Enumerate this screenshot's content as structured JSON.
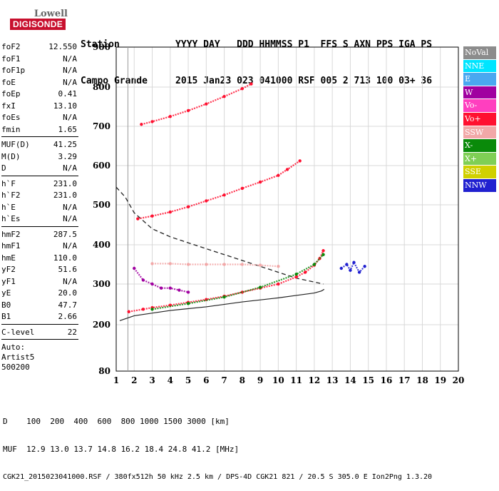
{
  "brand": {
    "line1": "Lowell",
    "line2": "DIGISONDE"
  },
  "header": {
    "row1": "Station          YYYY DAY   DDD HHMMSS P1  FFS S AXN PPS IGA PS",
    "row2": "Campo Grande     2015 Jan23 023 041000 RSF 005 2 713 100 03+ 36"
  },
  "params": {
    "g1": [
      [
        "foF2",
        "12.550"
      ],
      [
        "foF1",
        "N/A"
      ],
      [
        "foF1p",
        "N/A"
      ],
      [
        "foE",
        "N/A"
      ],
      [
        "foEp",
        "0.41"
      ],
      [
        "fxI",
        "13.10"
      ],
      [
        "foEs",
        "N/A"
      ],
      [
        "fmin",
        "1.65"
      ]
    ],
    "g2": [
      [
        "MUF(D)",
        "41.25"
      ],
      [
        "M(D)",
        "3.29"
      ],
      [
        "D",
        "N/A"
      ]
    ],
    "g3": [
      [
        "h`F",
        "231.0"
      ],
      [
        "h`F2",
        "231.0"
      ],
      [
        "h`E",
        "N/A"
      ],
      [
        "h`Es",
        "N/A"
      ]
    ],
    "g4": [
      [
        "hmF2",
        "287.5"
      ],
      [
        "hmF1",
        "N/A"
      ],
      [
        "hmE",
        "110.0"
      ],
      [
        "yF2",
        "51.6"
      ],
      [
        "yF1",
        "N/A"
      ],
      [
        "yE",
        "20.0"
      ],
      [
        "B0",
        "47.7"
      ],
      [
        "B1",
        "2.66"
      ]
    ],
    "g5": [
      [
        "C-level",
        "22"
      ]
    ]
  },
  "auto": {
    "l1": "Auto:",
    "l2": "Artist5",
    "l3": "500200"
  },
  "legend": [
    {
      "label": "NoVal",
      "color": "#8c8c8c"
    },
    {
      "label": "NNE",
      "color": "#00e5ff"
    },
    {
      "label": "E",
      "color": "#4aa8f0"
    },
    {
      "label": "W",
      "color": "#a000a0"
    },
    {
      "label": "Vo-",
      "color": "#ff3fbf"
    },
    {
      "label": "Vo+",
      "color": "#ff1030"
    },
    {
      "label": "SSW",
      "color": "#f2a8a8"
    },
    {
      "label": "X-",
      "color": "#0a8a0a"
    },
    {
      "label": "X+",
      "color": "#7fcf55"
    },
    {
      "label": "SSE",
      "color": "#d0d000"
    },
    {
      "label": "NNW",
      "color": "#2020d0"
    }
  ],
  "footer": {
    "l1": "D    100  200  400  600  800 1000 1500 3000 [km]",
    "l2": "MUF  12.9 13.0 13.7 14.8 16.2 18.4 24.8 41.2 [MHz]",
    "l3": "CGK21_2015023041000.RSF / 380fx512h 50 kHz 2.5 km / DPS-4D CGK21 821 / 20.5 S 305.0 E Ion2Png 1.3.20"
  },
  "chart_data": {
    "type": "scatter",
    "xlim": [
      1,
      20
    ],
    "ylim": [
      80,
      900
    ],
    "xticks": [
      1,
      2,
      3,
      4,
      5,
      6,
      7,
      8,
      9,
      10,
      11,
      12,
      13,
      14,
      15,
      16,
      17,
      18,
      19,
      20
    ],
    "yticks": [
      80,
      200,
      300,
      400,
      500,
      600,
      700,
      800,
      900
    ],
    "grid": true,
    "fmin_line": 1.65,
    "foF2_line": 12.55,
    "series": [
      {
        "color": "#ff1030",
        "x": [
          1.7,
          2.5,
          3,
          4,
          5,
          6,
          7,
          8,
          9,
          10,
          11,
          11.5,
          12,
          12.3,
          12.5
        ],
        "y": [
          232,
          238,
          242,
          248,
          255,
          262,
          270,
          280,
          290,
          300,
          318,
          330,
          348,
          365,
          385
        ]
      },
      {
        "color": "#ff1030",
        "x": [
          2.2,
          3,
          4,
          5,
          6,
          7,
          8,
          9,
          10,
          10.5,
          11.2
        ],
        "y": [
          465,
          472,
          482,
          495,
          510,
          525,
          542,
          558,
          575,
          590,
          612
        ]
      },
      {
        "color": "#ff1030",
        "x": [
          2.4,
          3,
          4,
          5,
          6,
          7,
          8,
          8.5
        ],
        "y": [
          705,
          712,
          725,
          740,
          757,
          776,
          796,
          808
        ]
      },
      {
        "color": "#f2a8a8",
        "x": [
          3,
          4,
          5,
          6,
          7,
          8,
          9,
          10
        ],
        "y": [
          352,
          352,
          350,
          350,
          350,
          350,
          348,
          345
        ]
      },
      {
        "color": "#a000a0",
        "x": [
          2,
          2.5,
          3,
          3.5,
          4,
          4.5,
          5
        ],
        "y": [
          340,
          310,
          300,
          290,
          290,
          285,
          280
        ]
      },
      {
        "color": "#0a8a0a",
        "x": [
          3,
          5,
          7,
          9,
          11,
          12,
          12.5
        ],
        "y": [
          238,
          252,
          268,
          292,
          325,
          350,
          375
        ]
      },
      {
        "color": "#2020d0",
        "x": [
          13.5,
          13.8,
          14,
          14.2,
          14.5,
          14.8
        ],
        "y": [
          340,
          350,
          335,
          355,
          330,
          345
        ]
      }
    ],
    "profile": {
      "x": [
        1.2,
        2,
        4,
        6,
        8,
        10,
        11,
        12,
        12.4,
        12.55
      ],
      "y": [
        210,
        222,
        235,
        244,
        256,
        266,
        272,
        278,
        283,
        287
      ]
    },
    "mufcurve": {
      "x": [
        1,
        1.5,
        2,
        3,
        4,
        5,
        6,
        7,
        8,
        9,
        10,
        11,
        12,
        12.5
      ],
      "y": [
        545,
        520,
        480,
        440,
        420,
        405,
        390,
        375,
        360,
        345,
        330,
        315,
        305,
        300
      ]
    }
  }
}
